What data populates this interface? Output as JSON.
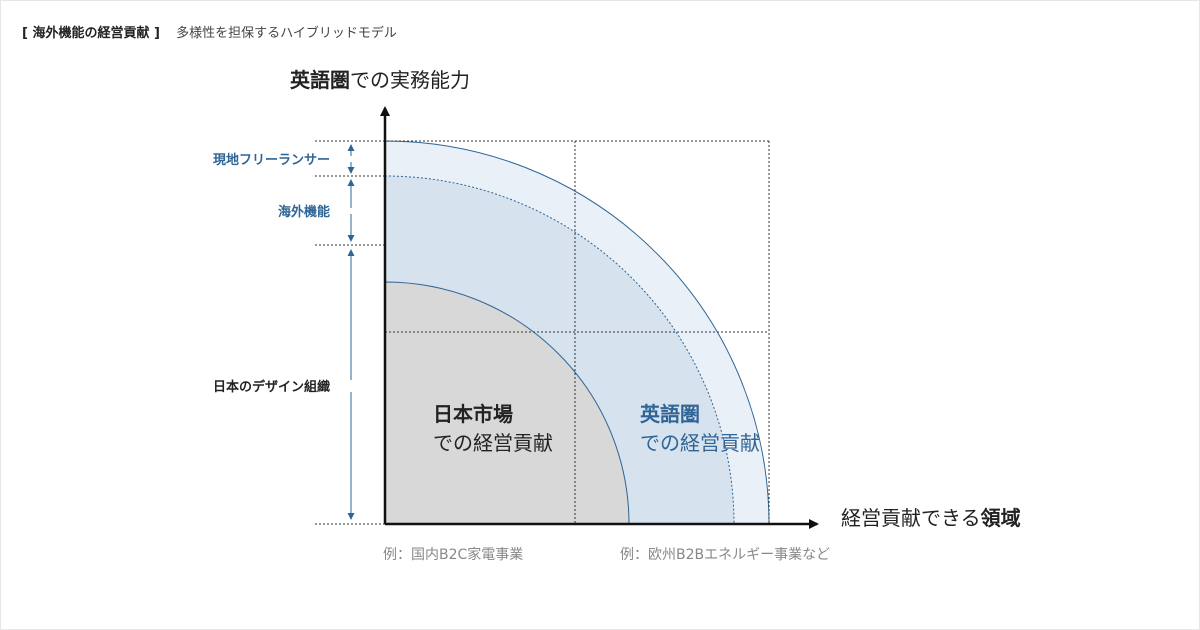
{
  "header": {
    "tag": "[ 海外機能の経営貢献 ]",
    "subtitle": "多様性を担保するハイブリッドモデル"
  },
  "axes": {
    "y_label_bold": "英語圏",
    "y_label_rest": "での実務能力",
    "x_label_rest": "経営貢献できる",
    "x_label_bold": "領域"
  },
  "bands": {
    "freelancer": "現地フリーランサー",
    "overseas": "海外機能",
    "japan_org": "日本のデザイン組織"
  },
  "regions": {
    "japan_title": "日本市場",
    "japan_sub": "での経営貢献",
    "english_title": "英語圏",
    "english_sub": "での経営貢献"
  },
  "examples": {
    "left": "例：国内B2C家電事業",
    "right": "例：欧州B2Bエネルギー事業など"
  },
  "colors": {
    "accent": "#2f6596",
    "gray_fill": "#d8d8d8",
    "blue_mid": "#d6e2ee",
    "blue_light": "#e9f0f7"
  }
}
